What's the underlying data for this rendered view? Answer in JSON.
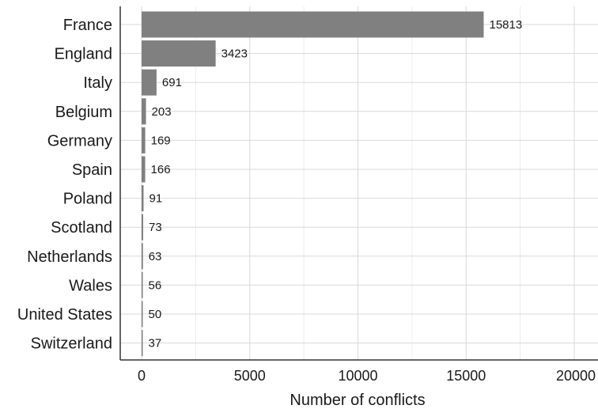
{
  "chart_data": {
    "type": "bar",
    "orientation": "horizontal",
    "categories": [
      "France",
      "England",
      "Italy",
      "Belgium",
      "Germany",
      "Spain",
      "Poland",
      "Scotland",
      "Netherlands",
      "Wales",
      "United States",
      "Switzerland"
    ],
    "values": [
      15813,
      3423,
      691,
      203,
      169,
      166,
      91,
      73,
      63,
      56,
      50,
      37
    ],
    "xlabel": "Number of conflicts",
    "ylabel": "",
    "title": "",
    "xlim": [
      0,
      20000
    ],
    "xticks": [
      0,
      5000,
      10000,
      15000,
      20000
    ],
    "grid": true,
    "bar_color": "#808080",
    "grid_color": "#d9d9d9",
    "axis_color": "#333333"
  }
}
